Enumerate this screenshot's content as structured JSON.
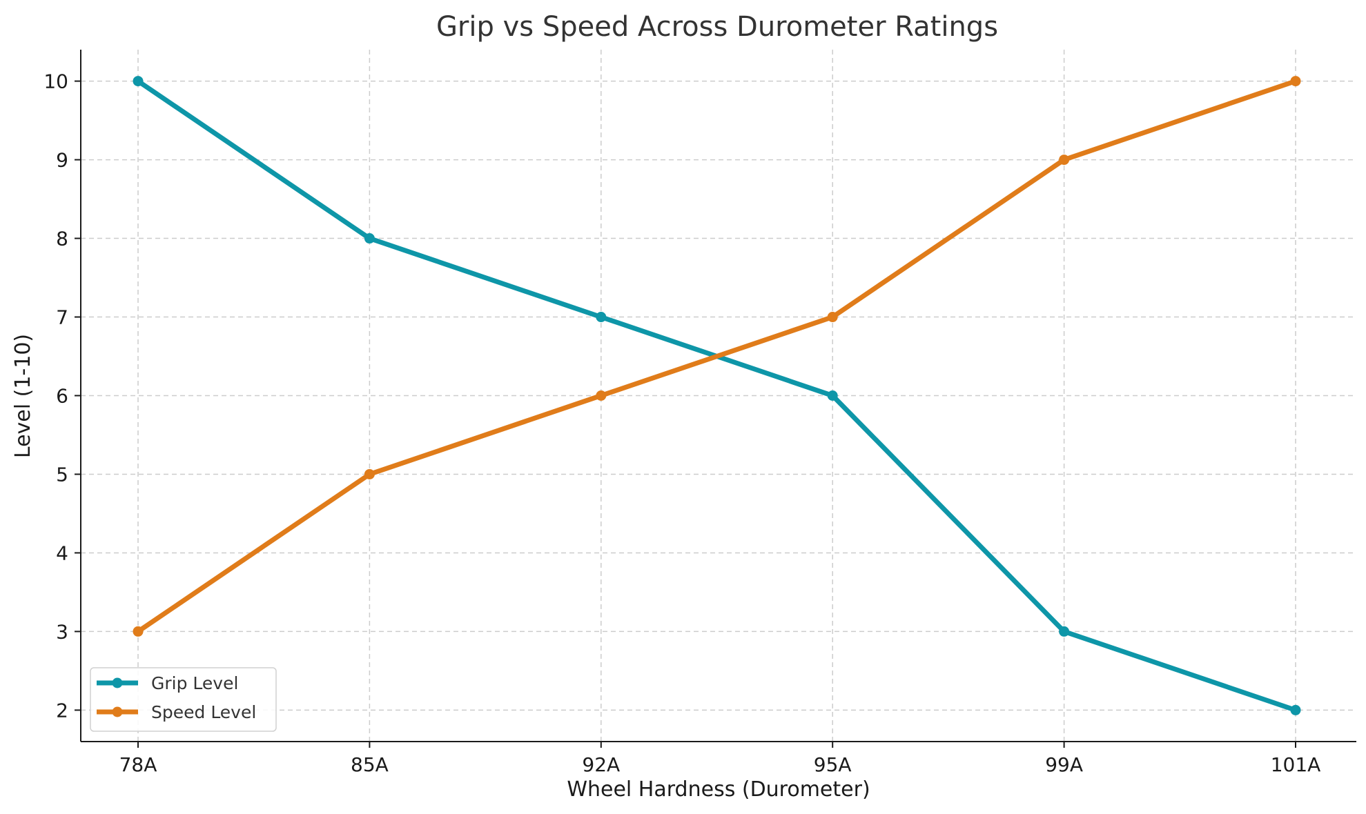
{
  "chart_data": {
    "type": "line",
    "title": "Grip vs Speed Across Durometer Ratings",
    "xlabel": "Wheel Hardness (Durometer)",
    "ylabel": "Level (1-10)",
    "categories": [
      "78A",
      "85A",
      "92A",
      "95A",
      "99A",
      "101A"
    ],
    "ylim": [
      1.6,
      10.4
    ],
    "yticks": [
      2,
      3,
      4,
      5,
      6,
      7,
      8,
      9,
      10
    ],
    "grid": true,
    "legend_position": "bottom-left",
    "series": [
      {
        "name": "Grip Level",
        "values": [
          10,
          8,
          7,
          6,
          3,
          2
        ],
        "color": "#0E96A8"
      },
      {
        "name": "Speed Level",
        "values": [
          3,
          5,
          6,
          7,
          9,
          10
        ],
        "color": "#E07C1A"
      }
    ]
  }
}
